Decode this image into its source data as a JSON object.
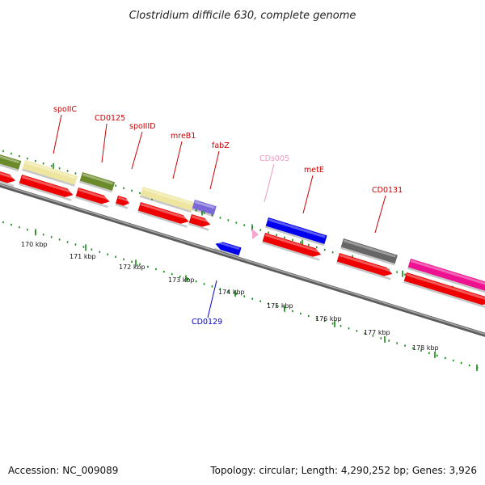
{
  "title": "Clostridium difficile 630, complete genome",
  "accession": "Accession: NC_009089",
  "summary": "Topology: circular; Length: 4,290,252 bp; Genes: 3,926",
  "colors": {
    "backbone": "#7a7a7a",
    "red": "#ee0000",
    "olive": "#6b8a2a",
    "khaki": "#eee6a0",
    "slate": "#7b68d8",
    "blue": "#0000ee",
    "dark_gray": "#666666",
    "magenta": "#ee1290",
    "pink": "#f4a6cc",
    "tick": "#138a13",
    "label_red": "#cc0000",
    "label_blue": "#0000cc",
    "label_pink": "#ee99c0"
  },
  "gene_labels": [
    {
      "id": "spoIIC",
      "text": "spoIIC",
      "color": "label_red"
    },
    {
      "id": "CD0125",
      "text": "CD0125",
      "color": "label_red"
    },
    {
      "id": "spoIIID",
      "text": "spoIIID",
      "color": "label_red"
    },
    {
      "id": "mreB1",
      "text": "mreB1",
      "color": "label_red"
    },
    {
      "id": "fabZ",
      "text": "fabZ",
      "color": "label_red"
    },
    {
      "id": "CDs005",
      "text": "CDs005",
      "color": "label_pink"
    },
    {
      "id": "metE",
      "text": "metE",
      "color": "label_red"
    },
    {
      "id": "CD0131",
      "text": "CD0131",
      "color": "label_red"
    },
    {
      "id": "CD0129",
      "text": "CD0129",
      "color": "label_blue"
    }
  ],
  "kbp_ticks": [
    "170 kbp",
    "171 kbp",
    "172 kbp",
    "173 kbp",
    "174 kbp",
    "175 kbp",
    "176 kbp",
    "177 kbp",
    "178 kbp"
  ]
}
